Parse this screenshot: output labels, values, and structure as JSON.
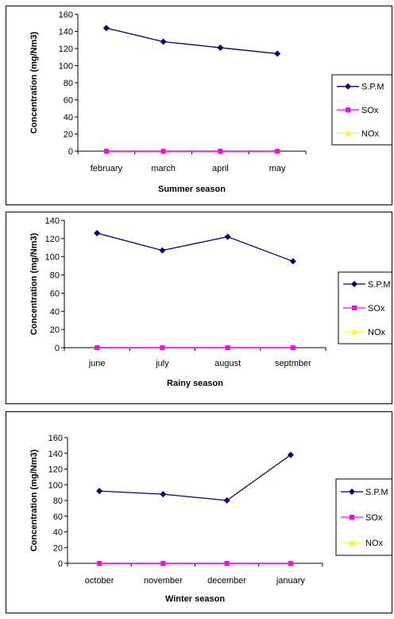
{
  "colors": {
    "spm": "#000080",
    "sox": "#ff00ff",
    "nox": "#ffff00",
    "axis": "#000000"
  },
  "legend_labels": [
    "S.P.M",
    "SOx",
    "NOx"
  ],
  "chart_data": [
    {
      "type": "line",
      "xlabel": "Summer season",
      "ylabel": "Concentration (mg/Nm3)",
      "categories": [
        "february",
        "march",
        "april",
        "may"
      ],
      "ylim": [
        0,
        160
      ],
      "yticks": [
        0,
        20,
        40,
        60,
        80,
        100,
        120,
        140,
        160
      ],
      "legend_position": "right",
      "series": [
        {
          "name": "S.P.M",
          "values": [
            144,
            128,
            121,
            114
          ]
        },
        {
          "name": "SOx",
          "values": [
            0,
            0,
            0,
            0
          ]
        },
        {
          "name": "NOx",
          "values": [
            0,
            0,
            0,
            0
          ]
        }
      ]
    },
    {
      "type": "line",
      "xlabel": "Rainy season",
      "ylabel": "Concentration (mg/Nm3)",
      "categories": [
        "june",
        "july",
        "august",
        "septmber"
      ],
      "ylim": [
        0,
        140
      ],
      "yticks": [
        0,
        20,
        40,
        60,
        80,
        100,
        120,
        140
      ],
      "legend_position": "right",
      "series": [
        {
          "name": "S.P.M",
          "values": [
            126,
            107,
            122,
            95
          ]
        },
        {
          "name": "SOx",
          "values": [
            0,
            0,
            0,
            0
          ]
        },
        {
          "name": "NOx",
          "values": [
            0,
            0,
            0,
            0
          ]
        }
      ]
    },
    {
      "type": "line",
      "xlabel": "Winter season",
      "ylabel": "Concentration (mg/Nm3)",
      "categories": [
        "october",
        "november",
        "december",
        "january"
      ],
      "ylim": [
        0,
        160
      ],
      "yticks": [
        0,
        20,
        40,
        60,
        80,
        100,
        120,
        140,
        160
      ],
      "legend_position": "right",
      "series": [
        {
          "name": "S.P.M",
          "values": [
            92,
            88,
            80,
            138
          ]
        },
        {
          "name": "SOx",
          "values": [
            0,
            0,
            0,
            0
          ]
        },
        {
          "name": "NOx",
          "values": [
            0,
            0,
            0,
            0
          ]
        }
      ]
    }
  ]
}
